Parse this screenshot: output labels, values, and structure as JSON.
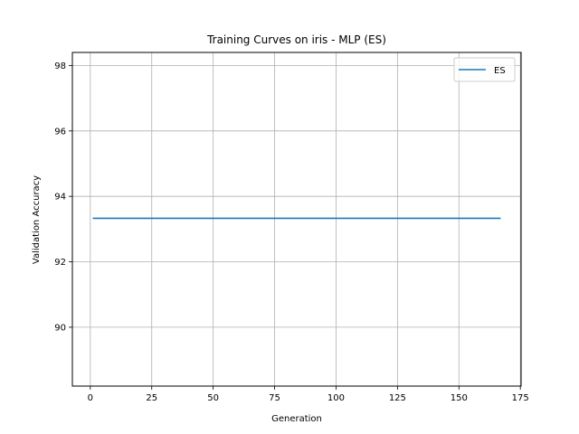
{
  "chart_data": {
    "type": "line",
    "title": "Training Curves on iris - MLP (ES)",
    "xlabel": "Generation",
    "ylabel": "Validation Accuracy",
    "xlim": [
      -7.3,
      175.3
    ],
    "ylim": [
      88.2,
      98.4
    ],
    "xticks": [
      0,
      25,
      50,
      75,
      100,
      125,
      150,
      175
    ],
    "yticks": [
      90,
      92,
      94,
      96,
      98
    ],
    "grid": true,
    "legend_position": "top-right",
    "series": [
      {
        "name": "ES",
        "color": "#1f77b4",
        "x": [
          1,
          167
        ],
        "y": [
          93.33,
          93.33
        ]
      }
    ]
  }
}
